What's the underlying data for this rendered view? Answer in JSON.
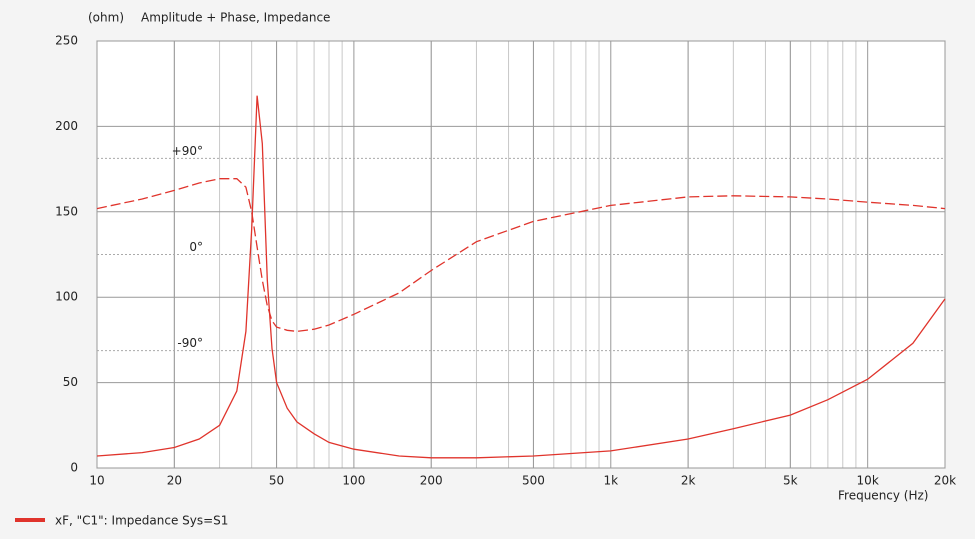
{
  "chart_data": {
    "type": "line",
    "title": "Amplitude + Phase, Impedance",
    "y_label": "(ohm)",
    "x_label": "Frequency  (Hz)",
    "log_x": true,
    "grid": true,
    "x": [
      10,
      15,
      20,
      25,
      30,
      35,
      38,
      40,
      42,
      44,
      46,
      48,
      50,
      55,
      60,
      70,
      80,
      100,
      150,
      200,
      300,
      500,
      1000,
      2000,
      3000,
      5000,
      7000,
      10000,
      15000,
      20000
    ],
    "series": [
      {
        "name": "xF, \"C1\": Impedance Sys=S1",
        "color": "#e0342c",
        "linestyle": "solid",
        "values": [
          7,
          9,
          12,
          17,
          25,
          45,
          80,
          140,
          218,
          190,
          110,
          70,
          50,
          35,
          27,
          20,
          15,
          11,
          7,
          6,
          6,
          7,
          10,
          17,
          23,
          31,
          40,
          52,
          73,
          99
        ]
      },
      {
        "color": "#e0342c",
        "linestyle": "dashed",
        "axis": "y2",
        "values": [
          43,
          52,
          60,
          67,
          71,
          71,
          63,
          40,
          7,
          -24,
          -48,
          -62,
          -68,
          -71,
          -72,
          -70,
          -66,
          -56,
          -36,
          -15,
          12,
          31,
          46,
          54,
          55,
          54,
          52,
          49,
          46,
          43
        ]
      }
    ],
    "xlim": [
      10,
      20000
    ],
    "xticks": [
      10,
      20,
      50,
      100,
      200,
      500,
      {
        "value": 1000,
        "label": "1k"
      },
      {
        "value": 2000,
        "label": "2k"
      },
      {
        "value": 5000,
        "label": "5k"
      },
      {
        "value": 10000,
        "label": "10k"
      },
      {
        "value": 20000,
        "label": "20k"
      }
    ],
    "ylim": [
      0,
      250
    ],
    "yticks": [
      0,
      50,
      100,
      150,
      200,
      250
    ],
    "y2lim": [
      -200,
      200
    ],
    "y2ticks": [
      {
        "value": -90,
        "label": "-90°"
      },
      {
        "value": 0,
        "label": "0°"
      },
      {
        "value": 90,
        "label": "+90°"
      }
    ]
  }
}
